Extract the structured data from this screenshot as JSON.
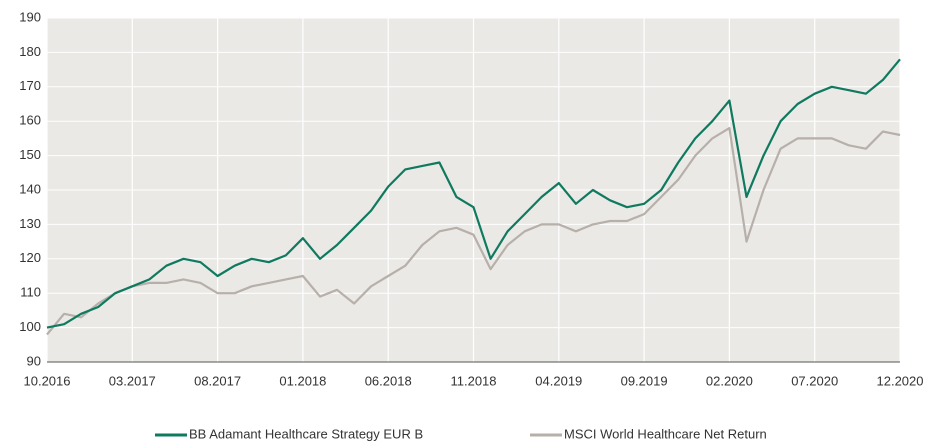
{
  "chart_data": {
    "type": "line",
    "categories": [
      "10.2016",
      null,
      null,
      null,
      null,
      "03.2017",
      null,
      null,
      null,
      null,
      "08.2017",
      null,
      null,
      null,
      null,
      "01.2018",
      null,
      null,
      null,
      null,
      "06.2018",
      null,
      null,
      null,
      null,
      "11.2018",
      null,
      null,
      null,
      null,
      "04.2019",
      null,
      null,
      null,
      null,
      "09.2019",
      null,
      null,
      null,
      null,
      "02.2020",
      null,
      null,
      null,
      null,
      "07.2020",
      null,
      null,
      null,
      null,
      "12.2020"
    ],
    "series": [
      {
        "name": "BB Adamant Healthcare Strategy EUR B",
        "color": "#0f7a5f",
        "values": [
          100,
          101,
          104,
          106,
          110,
          112,
          114,
          118,
          120,
          119,
          115,
          118,
          120,
          119,
          121,
          126,
          120,
          124,
          129,
          134,
          141,
          146,
          147,
          148,
          138,
          135,
          120,
          128,
          133,
          138,
          142,
          136,
          140,
          137,
          135,
          136,
          140,
          148,
          155,
          160,
          166,
          138,
          150,
          160,
          165,
          168,
          170,
          169,
          168,
          172,
          178
        ]
      },
      {
        "name": "MSCI World Healthcare Net Return",
        "color": "#b7b0aa",
        "values": [
          98,
          104,
          103,
          107,
          110,
          112,
          113,
          113,
          114,
          113,
          110,
          110,
          112,
          113,
          114,
          115,
          109,
          111,
          107,
          112,
          115,
          118,
          124,
          128,
          129,
          127,
          117,
          124,
          128,
          130,
          130,
          128,
          130,
          131,
          131,
          133,
          138,
          143,
          150,
          155,
          158,
          125,
          140,
          152,
          155,
          155,
          155,
          153,
          152,
          157,
          156
        ]
      }
    ],
    "ylim": [
      90,
      190
    ],
    "yticks": [
      90,
      100,
      110,
      120,
      130,
      140,
      150,
      160,
      170,
      180,
      190
    ],
    "grid": true
  }
}
